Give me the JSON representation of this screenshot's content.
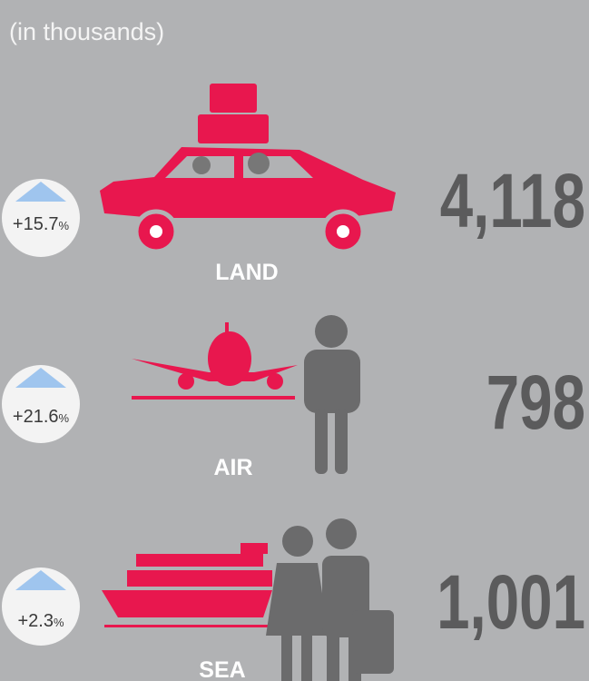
{
  "subtitle": "(in thousands)",
  "rows": [
    {
      "label": "LAND",
      "value": "4,118",
      "change": "+15.7",
      "change_unit": "%"
    },
    {
      "label": "AIR",
      "value": "798",
      "change": "+21.6",
      "change_unit": "%"
    },
    {
      "label": "SEA",
      "value": "1,001",
      "change": "+2.3",
      "change_unit": "%"
    }
  ]
}
